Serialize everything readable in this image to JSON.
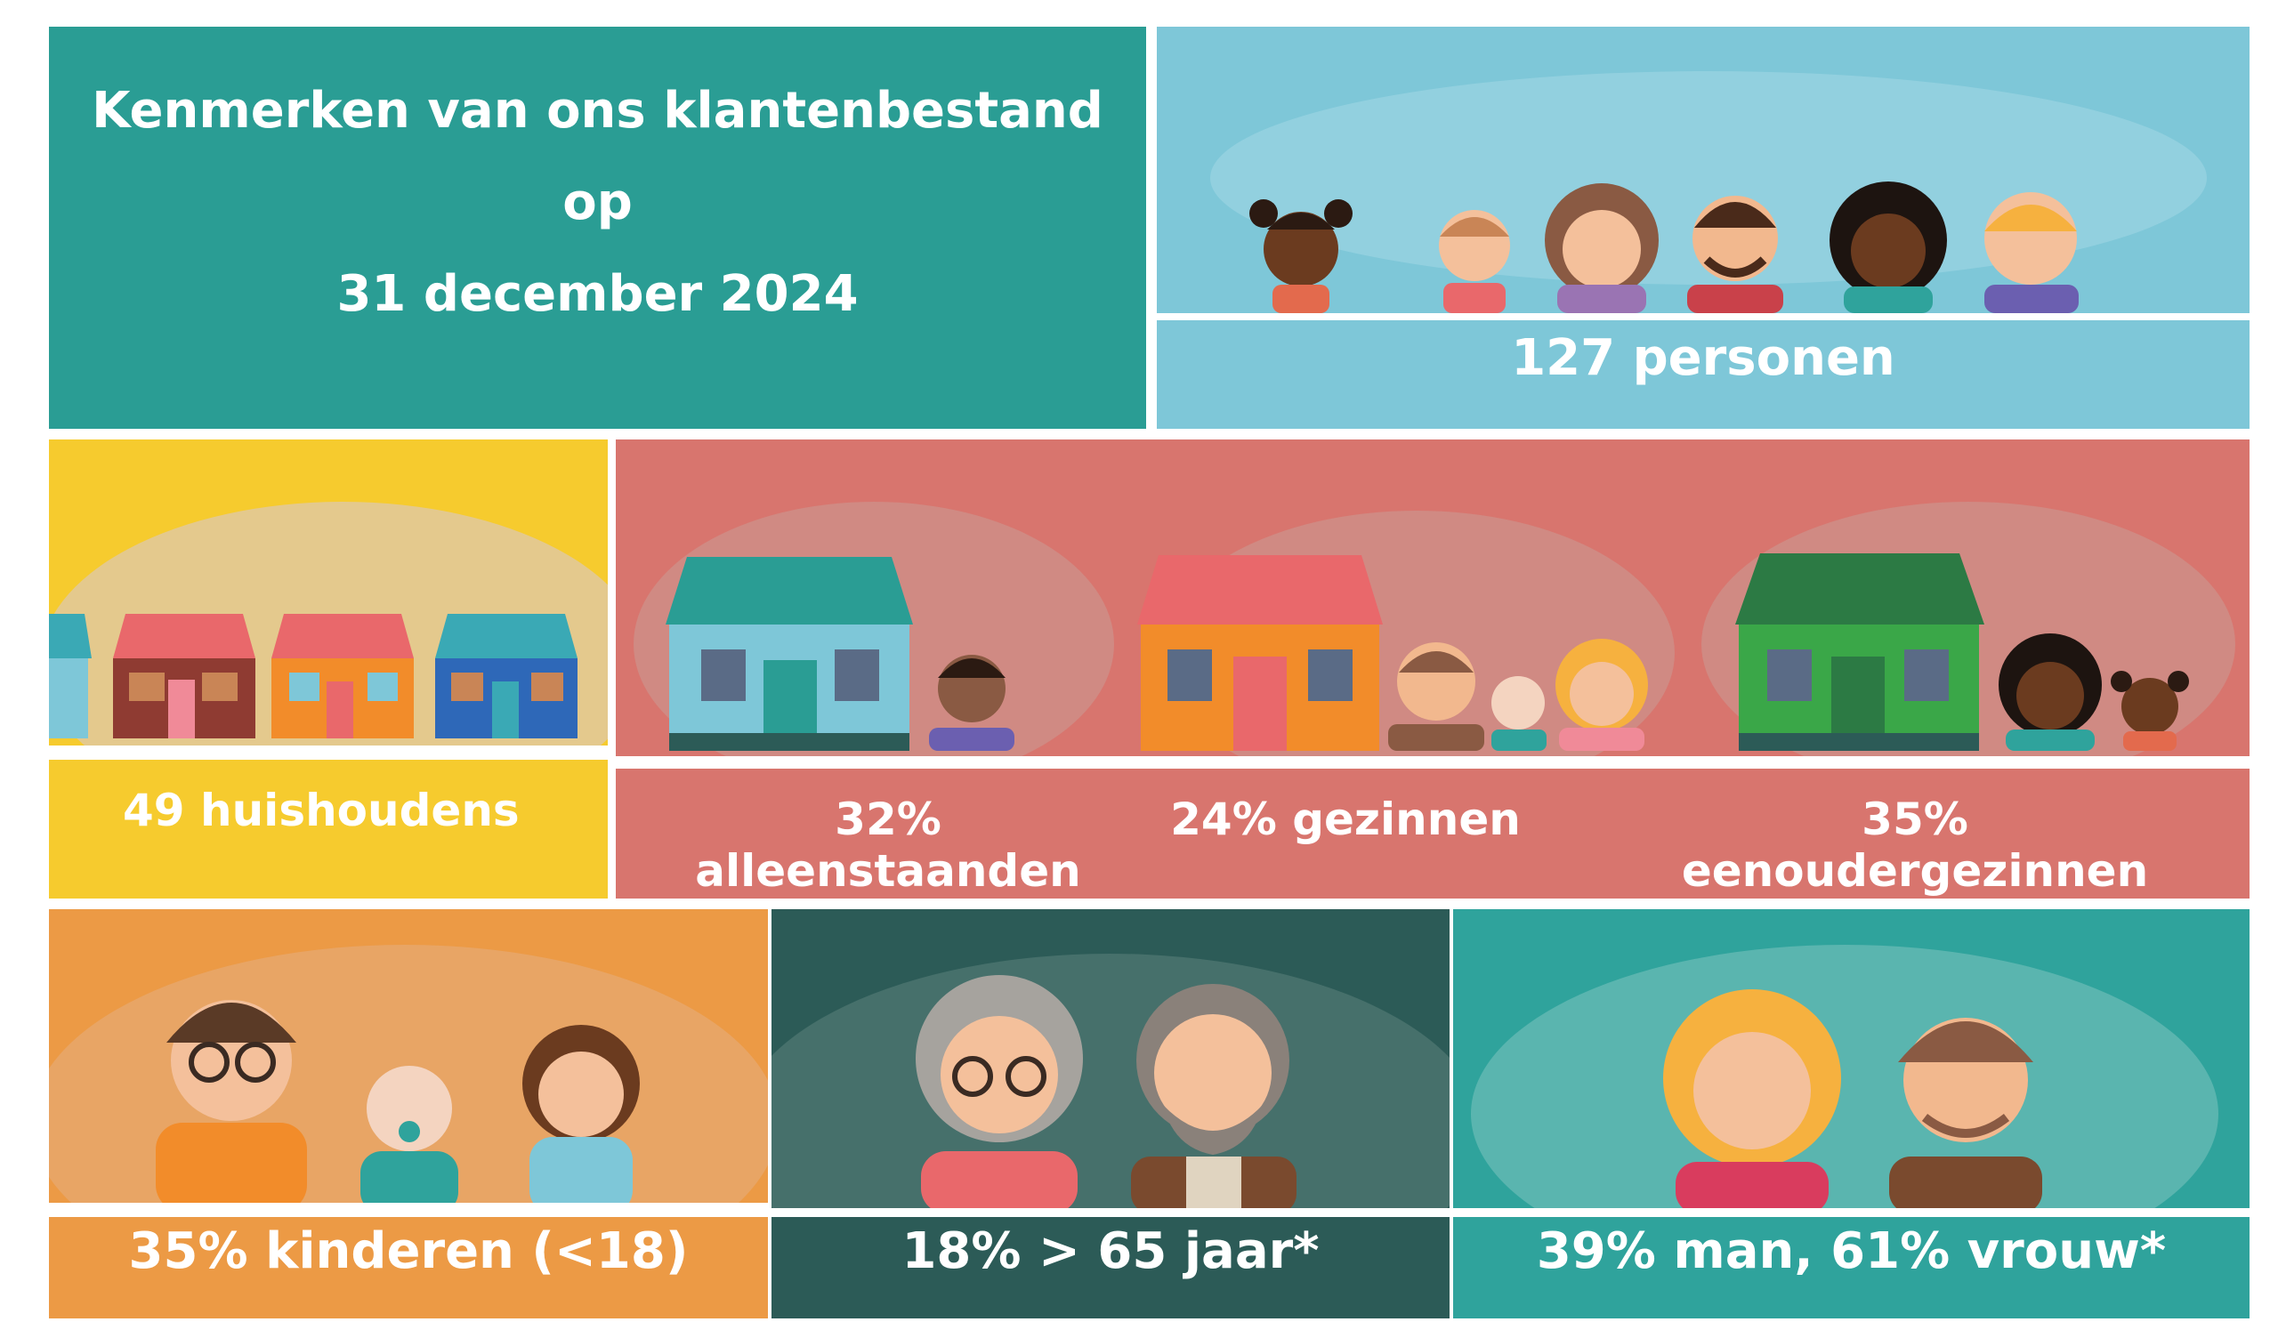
{
  "title": {
    "line1": "Kenmerken van ons klantenbestand",
    "line2": "op",
    "line3": "31 december 2024"
  },
  "persons": {
    "label": "127 personen"
  },
  "households": {
    "label": "49 huishoudens"
  },
  "household_types": {
    "singles": "32% alleenstaanden",
    "families": "24% gezinnen",
    "single_parents": "35% eenoudergezinnen"
  },
  "children": {
    "label": "35% kinderen (<18)"
  },
  "seniors": {
    "label": "18% > 65 jaar*"
  },
  "gender": {
    "label": "39% man, 61% vrouw*"
  },
  "colors": {
    "teal": "#2a9d94",
    "sky": "#7ec7d8",
    "yellow": "#f6cb2e",
    "coral": "#d8756e",
    "orange": "#ec9a45",
    "dark_teal": "#2c5b57",
    "sea": "#2fa39c"
  }
}
